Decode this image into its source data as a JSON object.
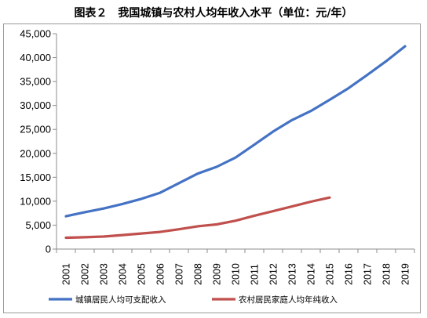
{
  "title": "图表２　我国城镇与农村人均年收入水平（单位：元/年）",
  "chart_data": {
    "type": "line",
    "title": "图表２　我国城镇与农村人均年收入水平（单位：元/年）",
    "xlabel": "",
    "ylabel": "",
    "categories": [
      "2001",
      "2002",
      "2003",
      "2004",
      "2005",
      "2006",
      "2007",
      "2008",
      "2009",
      "2010",
      "2011",
      "2012",
      "2013",
      "2014",
      "2015",
      "2016",
      "2017",
      "2018",
      "2019"
    ],
    "ylim": [
      0,
      45000
    ],
    "yticks": [
      "0",
      "5,000",
      "10,000",
      "15,000",
      "20,000",
      "25,000",
      "30,000",
      "35,000",
      "40,000",
      "45,000"
    ],
    "grid": false,
    "legend_position": "bottom",
    "series": [
      {
        "name": "城镇居民人均可支配收入",
        "color": "#4472c4",
        "values": [
          6860,
          7703,
          8472,
          9422,
          10493,
          11759,
          13786,
          15781,
          17175,
          19109,
          21810,
          24565,
          26955,
          28844,
          31195,
          33616,
          36396,
          39251,
          42359
        ]
      },
      {
        "name": "农村居民家庭人均年纯收入",
        "color": "#c0504d",
        "values": [
          2366,
          2476,
          2622,
          2936,
          3255,
          3587,
          4140,
          4761,
          5153,
          5919,
          6977,
          7917,
          8896,
          9892,
          10772,
          null,
          null,
          null,
          null
        ]
      }
    ]
  }
}
